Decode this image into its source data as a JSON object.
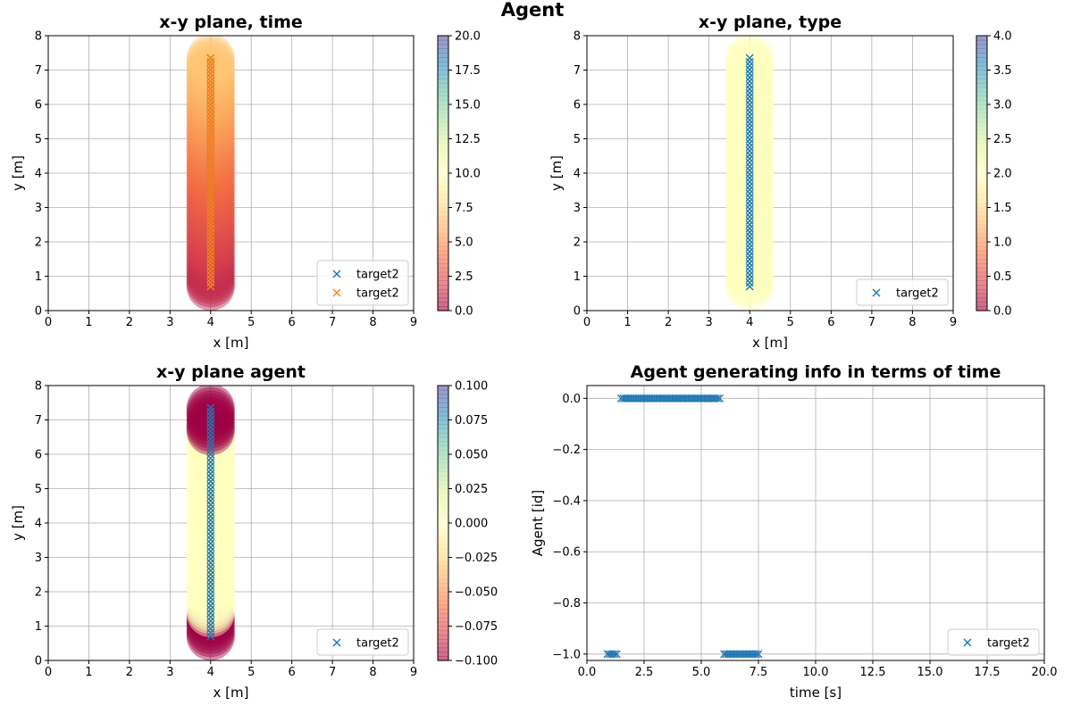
{
  "figure": {
    "suptitle": "Agent"
  },
  "chart_data": [
    {
      "type": "scatter",
      "panel": "top-left",
      "title": "x-y plane, time",
      "xlabel": "x [m]",
      "ylabel": "y [m]",
      "xlim": [
        0,
        9
      ],
      "ylim": [
        0,
        8
      ],
      "xticks": [
        "0",
        "1",
        "2",
        "3",
        "4",
        "5",
        "6",
        "7",
        "8",
        "9"
      ],
      "yticks": [
        "0",
        "1",
        "2",
        "3",
        "4",
        "5",
        "6",
        "7",
        "8"
      ],
      "grid": true,
      "legend": {
        "placement": "lower-right",
        "entries": [
          {
            "name": "target2",
            "color": "#1f77b4",
            "marker": "x"
          },
          {
            "name": "target2",
            "color": "#ff7f0e",
            "marker": "x"
          }
        ]
      },
      "colorbar": {
        "range": [
          0,
          20
        ],
        "ticks": [
          "0.0",
          "2.5",
          "5.0",
          "7.5",
          "10.0",
          "12.5",
          "15.0",
          "17.5",
          "20.0"
        ],
        "colormap": "Spectral"
      },
      "trail": {
        "x": 4,
        "y_from": 0.7,
        "y_to": 7.35,
        "color_value_from": 1.0,
        "color_value_to": 7.0
      },
      "series": [
        {
          "name": "target2",
          "color": "#1f77b4",
          "x": 4,
          "y_from": 0.7,
          "y_to": 7.35,
          "count": 60
        },
        {
          "name": "target2",
          "color": "#ff7f0e",
          "x": 4,
          "y_from": 0.7,
          "y_to": 7.35,
          "count": 60
        }
      ]
    },
    {
      "type": "scatter",
      "panel": "top-right",
      "title": "x-y plane, type",
      "xlabel": "x [m]",
      "ylabel": "y [m]",
      "xlim": [
        0,
        9
      ],
      "ylim": [
        0,
        8
      ],
      "xticks": [
        "0",
        "1",
        "2",
        "3",
        "4",
        "5",
        "6",
        "7",
        "8",
        "9"
      ],
      "yticks": [
        "0",
        "1",
        "2",
        "3",
        "4",
        "5",
        "6",
        "7",
        "8"
      ],
      "grid": true,
      "legend": {
        "placement": "lower-right",
        "entries": [
          {
            "name": "target2",
            "color": "#1f77b4",
            "marker": "x"
          }
        ]
      },
      "colorbar": {
        "range": [
          0,
          4
        ],
        "ticks": [
          "0.0",
          "0.5",
          "1.0",
          "1.5",
          "2.0",
          "2.5",
          "3.0",
          "3.5",
          "4.0"
        ],
        "colormap": "Spectral"
      },
      "trail": {
        "x": 4,
        "y_from": 0.7,
        "y_to": 7.35,
        "color_value": 2.0
      },
      "series": [
        {
          "name": "target2",
          "color": "#1f77b4",
          "x": 4,
          "y_from": 0.7,
          "y_to": 7.35,
          "count": 60
        }
      ]
    },
    {
      "type": "scatter",
      "panel": "bottom-left",
      "title": "x-y plane agent",
      "xlabel": "x [m]",
      "ylabel": "y [m]",
      "xlim": [
        0,
        9
      ],
      "ylim": [
        0,
        8
      ],
      "xticks": [
        "0",
        "1",
        "2",
        "3",
        "4",
        "5",
        "6",
        "7",
        "8",
        "9"
      ],
      "yticks": [
        "0",
        "1",
        "2",
        "3",
        "4",
        "5",
        "6",
        "7",
        "8"
      ],
      "grid": true,
      "legend": {
        "placement": "lower-right",
        "entries": [
          {
            "name": "target2",
            "color": "#1f77b4",
            "marker": "x"
          }
        ]
      },
      "colorbar": {
        "range": [
          -0.1,
          0.1
        ],
        "ticks": [
          "−0.100",
          "−0.075",
          "−0.050",
          "−0.025",
          "0.000",
          "0.025",
          "0.050",
          "0.075",
          "0.100"
        ],
        "colormap": "Spectral"
      },
      "trail": {
        "x": 4,
        "y_from": 0.7,
        "y_to": 7.35,
        "mid_value": 0.0,
        "end_value": -0.1,
        "end_bottom_to": 1.3,
        "end_top_from": 6.6
      },
      "series": [
        {
          "name": "target2",
          "color": "#1f77b4",
          "x": 4,
          "y_from": 0.7,
          "y_to": 7.35,
          "count": 60
        }
      ]
    },
    {
      "type": "scatter",
      "panel": "bottom-right",
      "title": "Agent generating info in terms of time",
      "xlabel": "time [s]",
      "ylabel": "Agent [id]",
      "xlim": [
        0,
        20
      ],
      "ylim": [
        -1.025,
        0.05
      ],
      "xticks": [
        "0.0",
        "2.5",
        "5.0",
        "7.5",
        "10.0",
        "12.5",
        "15.0",
        "17.5",
        "20.0"
      ],
      "yticks": [
        "−1.0",
        "−0.8",
        "−0.6",
        "−0.4",
        "−0.2",
        "0.0"
      ],
      "xtick_values": [
        0,
        2.5,
        5,
        7.5,
        10,
        12.5,
        15,
        17.5,
        20
      ],
      "ytick_values": [
        -1.0,
        -0.8,
        -0.6,
        -0.4,
        -0.2,
        0.0
      ],
      "grid": true,
      "legend": {
        "placement": "lower-right",
        "entries": [
          {
            "name": "target2",
            "color": "#1f77b4",
            "marker": "x"
          }
        ]
      },
      "series": [
        {
          "name": "target2",
          "color": "#1f77b4",
          "segments": [
            {
              "y": 0.0,
              "x_from": 1.5,
              "x_to": 5.8,
              "count": 44
            },
            {
              "y": -1.0,
              "x_from": 0.9,
              "x_to": 1.3,
              "count": 5
            },
            {
              "y": -1.0,
              "x_from": 6.0,
              "x_to": 7.5,
              "count": 16
            }
          ]
        }
      ]
    }
  ]
}
